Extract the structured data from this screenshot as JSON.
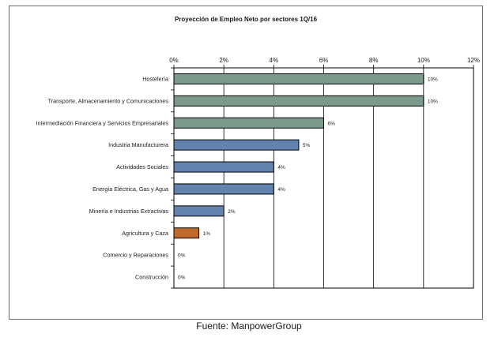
{
  "chart_data": {
    "type": "bar",
    "orientation": "horizontal",
    "title": "Proyección de Empleo Neto por sectores  1Q/16",
    "xlabel": "",
    "ylabel": "",
    "xlim": [
      0,
      12
    ],
    "x_ticks": [
      0,
      2,
      4,
      6,
      8,
      10,
      12
    ],
    "x_tick_format": "percent",
    "grid": true,
    "legend": "none",
    "categories": [
      "Hostelería",
      "Transporte, Almacenamiento y Comunicaciones",
      "Intermediación Financiera y Servicios Empresariales",
      "Industria Manufacturera",
      "Actividades Sociales",
      "Energía Eléctrica, Gas y Agua",
      "Minería e Industrias Extractivas",
      "Agricultura y Caza",
      "Comercio y Reparaciones",
      "Construcción"
    ],
    "values": [
      10,
      10,
      6,
      5,
      4,
      4,
      2,
      1,
      0,
      0
    ],
    "data_labels": [
      "10%",
      "10%",
      "6%",
      "5%",
      "4%",
      "4%",
      "2%",
      "1%",
      "0%",
      "0%"
    ],
    "bar_colors": [
      "#7b9a8b",
      "#7b9a8b",
      "#7b9a8b",
      "#6382ad",
      "#6382ad",
      "#6382ad",
      "#6382ad",
      "#c06a2b",
      "#6382ad",
      "#6382ad"
    ],
    "bar_border_color": "#000000"
  },
  "source": "Fuente: ManpowerGroup"
}
